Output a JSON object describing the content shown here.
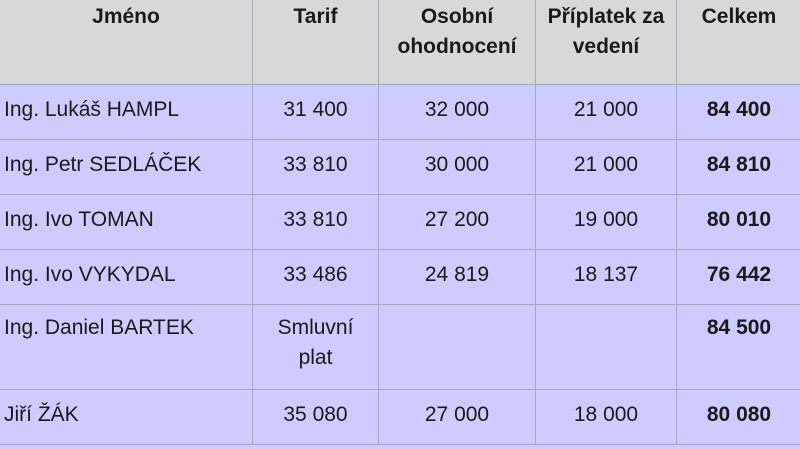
{
  "table": {
    "headers": [
      "Jméno",
      "Tarif",
      "Osobní ohodnocení",
      "Příplatek za vedení",
      "Celkem"
    ],
    "rows": [
      {
        "name": "Ing. Lukáš HAMPL",
        "tarif": "31 400",
        "osobni": "32 000",
        "priplatek": "21 000",
        "celkem": "84 400"
      },
      {
        "name": "Ing. Petr SEDLÁČEK",
        "tarif": "33 810",
        "osobni": "30 000",
        "priplatek": "21 000",
        "celkem": "84 810"
      },
      {
        "name": "Ing. Ivo TOMAN",
        "tarif": "33 810",
        "osobni": "27 200",
        "priplatek": "19 000",
        "celkem": "80 010"
      },
      {
        "name": "Ing. Ivo VYKYDAL",
        "tarif": "33 486",
        "osobni": "24 819",
        "priplatek": "18 137",
        "celkem": "76 442"
      },
      {
        "name": "Ing. Daniel BARTEK",
        "tarif": "Smluvní plat",
        "osobni": "",
        "priplatek": "",
        "celkem": "84 500"
      },
      {
        "name": "Jiří ŽÁK",
        "tarif": "35 080",
        "osobni": "27 000",
        "priplatek": "18 000",
        "celkem": "80 080"
      }
    ]
  },
  "colors": {
    "header_bg": "#d8d8d8",
    "row_bg": "#ccccff",
    "border": "#a8a8b8"
  }
}
